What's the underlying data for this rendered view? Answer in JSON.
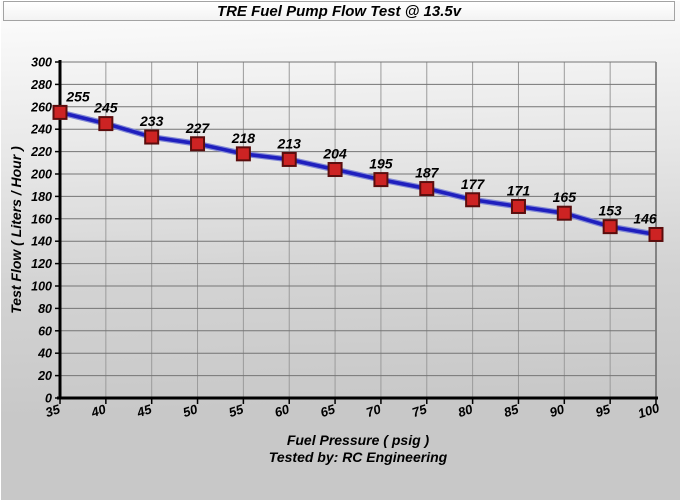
{
  "chart_data": {
    "type": "line",
    "title": "TRE Fuel Pump Flow Test @ 13.5v",
    "xlabel": "Fuel Pressure ( psig )",
    "xlabel_sub": "Tested by: RC Engineering",
    "ylabel": "Test Flow ( Liters / Hour )",
    "x": [
      35,
      40,
      45,
      50,
      55,
      60,
      65,
      70,
      75,
      80,
      85,
      90,
      95,
      100
    ],
    "values": [
      255,
      245,
      233,
      227,
      218,
      213,
      204,
      195,
      187,
      177,
      171,
      165,
      153,
      146
    ],
    "xlim": [
      35,
      100
    ],
    "ylim": [
      0,
      300
    ],
    "x_tick_step": 5,
    "y_tick_step": 20,
    "grid": true,
    "legend_position": "none",
    "point_labels_visible": true,
    "x_tick_angle_deg": -18,
    "colors": {
      "line": "#1f1fbe",
      "line_halo": "#8289d6",
      "marker_fill": "#cd2323",
      "marker_border": "#5a0d0d",
      "grid_horizontal": "#757575",
      "grid_vertical": "#9b9b9b",
      "plot_right_edge": "#606060",
      "axis": "#000000",
      "text": "#000000",
      "title_box_bg": "#ffffff",
      "title_box_border": "#a3a3a3",
      "bg_top": "#fbfbfb",
      "bg_mid": "#e6e6e6",
      "bg_bottom": "#c8c8c8"
    }
  }
}
